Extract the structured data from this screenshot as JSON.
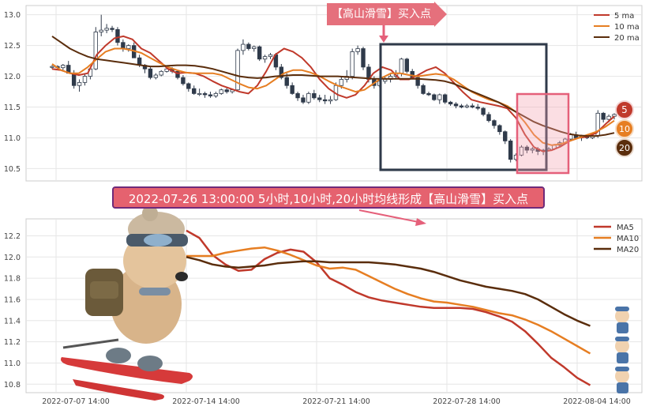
{
  "chart_data": [
    {
      "type": "candlestick",
      "title": "",
      "ylim": [
        10.3,
        13.15
      ],
      "y_ticks": [
        "10.5",
        "11.0",
        "11.5",
        "12.0",
        "12.5",
        "13.0"
      ],
      "legend_position": "top-right",
      "legend": [
        "5 ma",
        "10 ma",
        "20 ma"
      ],
      "candles": [
        [
          12.15,
          12.18,
          12.12,
          12.16
        ],
        [
          12.16,
          12.18,
          12.12,
          12.14
        ],
        [
          12.14,
          12.2,
          12.1,
          12.18
        ],
        [
          12.18,
          12.25,
          12.05,
          12.05
        ],
        [
          12.05,
          12.1,
          11.8,
          11.85
        ],
        [
          11.85,
          11.95,
          11.75,
          11.9
        ],
        [
          11.9,
          12.05,
          11.85,
          12.0
        ],
        [
          12.0,
          12.15,
          11.95,
          12.12
        ],
        [
          12.12,
          12.8,
          12.1,
          12.72
        ],
        [
          12.72,
          13.0,
          12.65,
          12.75
        ],
        [
          12.75,
          12.85,
          12.7,
          12.78
        ],
        [
          12.78,
          12.82,
          12.72,
          12.76
        ],
        [
          12.76,
          12.8,
          12.5,
          12.55
        ],
        [
          12.55,
          12.6,
          12.4,
          12.45
        ],
        [
          12.45,
          12.52,
          12.4,
          12.5
        ],
        [
          12.5,
          12.55,
          12.3,
          12.3
        ],
        [
          12.3,
          12.35,
          12.15,
          12.18
        ],
        [
          12.18,
          12.2,
          12.05,
          12.12
        ],
        [
          12.12,
          12.15,
          11.95,
          11.98
        ],
        [
          11.98,
          12.05,
          11.95,
          12.02
        ],
        [
          12.02,
          12.1,
          12.0,
          12.08
        ],
        [
          12.08,
          12.14,
          12.06,
          12.12
        ],
        [
          12.12,
          12.15,
          12.05,
          12.08
        ],
        [
          12.08,
          12.1,
          11.95,
          11.98
        ],
        [
          11.98,
          12.02,
          11.85,
          11.88
        ],
        [
          11.88,
          11.9,
          11.75,
          11.8
        ],
        [
          11.8,
          11.85,
          11.7,
          11.72
        ],
        [
          11.72,
          11.8,
          11.68,
          11.72
        ],
        [
          11.72,
          11.75,
          11.65,
          11.7
        ],
        [
          11.7,
          11.75,
          11.65,
          11.68
        ],
        [
          11.68,
          11.75,
          11.65,
          11.72
        ],
        [
          11.72,
          11.8,
          11.7,
          11.78
        ],
        [
          11.78,
          11.82,
          11.72,
          11.75
        ],
        [
          11.75,
          11.8,
          11.72,
          11.78
        ],
        [
          11.78,
          12.45,
          11.75,
          12.42
        ],
        [
          12.42,
          12.6,
          12.35,
          12.52
        ],
        [
          12.52,
          12.55,
          12.42,
          12.45
        ],
        [
          12.45,
          12.5,
          12.4,
          12.48
        ],
        [
          12.48,
          12.5,
          12.25,
          12.28
        ],
        [
          12.28,
          12.35,
          12.22,
          12.32
        ],
        [
          12.32,
          12.38,
          12.28,
          12.35
        ],
        [
          12.35,
          12.38,
          12.1,
          12.15
        ],
        [
          12.15,
          12.2,
          11.95,
          11.98
        ],
        [
          11.98,
          12.05,
          11.8,
          11.85
        ],
        [
          11.85,
          11.9,
          11.7,
          11.72
        ],
        [
          11.72,
          11.75,
          11.6,
          11.65
        ],
        [
          11.65,
          11.7,
          11.55,
          11.58
        ],
        [
          11.58,
          11.75,
          11.55,
          11.72
        ],
        [
          11.72,
          11.78,
          11.62,
          11.65
        ],
        [
          11.65,
          11.7,
          11.58,
          11.62
        ],
        [
          11.62,
          11.7,
          11.55,
          11.6
        ],
        [
          11.6,
          11.68,
          11.55,
          11.62
        ],
        [
          11.62,
          11.9,
          11.6,
          11.85
        ],
        [
          11.85,
          12.0,
          11.8,
          11.95
        ],
        [
          11.95,
          12.1,
          11.9,
          12.0
        ],
        [
          12.0,
          12.45,
          11.95,
          12.4
        ],
        [
          12.4,
          12.5,
          12.35,
          12.45
        ],
        [
          12.45,
          12.48,
          12.1,
          12.15
        ],
        [
          12.15,
          12.2,
          11.9,
          11.95
        ],
        [
          11.95,
          12.0,
          11.8,
          11.85
        ],
        [
          11.85,
          11.95,
          11.82,
          11.92
        ],
        [
          11.92,
          12.0,
          11.88,
          11.95
        ],
        [
          11.95,
          12.05,
          11.9,
          12.0
        ],
        [
          12.0,
          12.1,
          11.95,
          12.05
        ],
        [
          12.05,
          12.3,
          12.0,
          12.28
        ],
        [
          12.28,
          12.3,
          12.05,
          12.08
        ],
        [
          12.08,
          12.12,
          11.95,
          11.98
        ],
        [
          11.98,
          12.0,
          11.8,
          11.85
        ],
        [
          11.85,
          11.88,
          11.7,
          11.72
        ],
        [
          11.72,
          11.75,
          11.68,
          11.7
        ],
        [
          11.7,
          11.72,
          11.6,
          11.62
        ],
        [
          11.62,
          11.72,
          11.55,
          11.7
        ],
        [
          11.7,
          11.72,
          11.55,
          11.58
        ],
        [
          11.58,
          11.6,
          11.52,
          11.55
        ],
        [
          11.55,
          11.58,
          11.48,
          11.52
        ],
        [
          11.52,
          11.55,
          11.48,
          11.5
        ],
        [
          11.5,
          11.55,
          11.48,
          11.52
        ],
        [
          11.52,
          11.56,
          11.48,
          11.5
        ],
        [
          11.5,
          11.55,
          11.45,
          11.48
        ],
        [
          11.48,
          11.5,
          11.35,
          11.38
        ],
        [
          11.38,
          11.42,
          11.25,
          11.28
        ],
        [
          11.28,
          11.3,
          11.15,
          11.2
        ],
        [
          11.2,
          11.22,
          11.05,
          11.1
        ],
        [
          11.1,
          11.12,
          10.9,
          10.95
        ],
        [
          10.95,
          10.98,
          10.6,
          10.65
        ],
        [
          10.65,
          10.75,
          10.62,
          10.72
        ],
        [
          10.72,
          10.88,
          10.7,
          10.85
        ],
        [
          10.85,
          10.88,
          10.75,
          10.8
        ],
        [
          10.8,
          10.85,
          10.75,
          10.82
        ],
        [
          10.82,
          10.85,
          10.72,
          10.78
        ],
        [
          10.78,
          10.82,
          10.72,
          10.8
        ],
        [
          10.8,
          10.85,
          10.78,
          10.82
        ],
        [
          10.82,
          10.9,
          10.8,
          10.88
        ],
        [
          10.88,
          10.95,
          10.85,
          10.92
        ],
        [
          10.92,
          11.0,
          10.9,
          10.98
        ],
        [
          10.98,
          11.08,
          10.95,
          11.05
        ],
        [
          11.05,
          11.1,
          10.98,
          11.0
        ],
        [
          11.0,
          11.05,
          10.95,
          11.02
        ],
        [
          11.02,
          11.05,
          10.98,
          11.0
        ],
        [
          11.0,
          11.05,
          10.98,
          11.03
        ],
        [
          11.03,
          11.45,
          11.0,
          11.4
        ],
        [
          11.4,
          11.42,
          11.25,
          11.3
        ],
        [
          11.3,
          11.38,
          11.25,
          11.35
        ],
        [
          11.35,
          11.4,
          11.3,
          11.38
        ]
      ],
      "series": [
        {
          "name": "5 ma",
          "color": "#c0392b",
          "values": [
            12.12,
            12.1,
            12.05,
            12.02,
            12.05,
            12.35,
            12.5,
            12.62,
            12.65,
            12.6,
            12.45,
            12.38,
            12.25,
            12.12,
            12.05,
            12.06,
            12.05,
            12.0,
            11.92,
            11.85,
            11.8,
            11.75,
            11.72,
            11.85,
            12.08,
            12.35,
            12.45,
            12.4,
            12.3,
            12.15,
            11.95,
            11.8,
            11.7,
            11.65,
            11.7,
            11.85,
            12.05,
            12.15,
            12.1,
            11.95,
            11.95,
            12.02,
            12.1,
            12.15,
            12.05,
            11.9,
            11.75,
            11.62,
            11.58,
            11.55,
            11.52,
            11.48,
            11.32,
            11.05,
            10.85,
            10.78,
            10.8,
            10.86,
            10.95,
            11.0,
            11.02,
            11.08,
            11.22,
            11.35
          ]
        },
        {
          "name": "10 ma",
          "color": "#e67e22",
          "values": [
            12.2,
            12.1,
            12.05,
            12.05,
            12.15,
            12.28,
            12.4,
            12.45,
            12.45,
            12.42,
            12.38,
            12.3,
            12.22,
            12.15,
            12.1,
            12.06,
            12.05,
            12.05,
            12.05,
            12.02,
            11.95,
            11.88,
            11.82,
            11.8,
            11.85,
            11.95,
            12.05,
            12.1,
            12.1,
            12.06,
            12.0,
            11.92,
            11.85,
            11.8,
            11.75,
            11.78,
            11.88,
            11.98,
            12.05,
            12.05,
            12.02,
            12.0,
            12.02,
            12.04,
            12.02,
            11.95,
            11.85,
            11.75,
            11.68,
            11.62,
            11.58,
            11.52,
            11.42,
            11.25,
            11.05,
            10.92,
            10.88,
            10.9,
            10.95,
            11.0,
            11.05,
            11.1,
            11.18,
            11.28
          ]
        },
        {
          "name": "20 ma",
          "color": "#5a2d0c",
          "values": [
            12.65,
            12.55,
            12.45,
            12.38,
            12.32,
            12.28,
            12.26,
            12.24,
            12.22,
            12.2,
            12.18,
            12.16,
            12.16,
            12.17,
            12.18,
            12.18,
            12.17,
            12.15,
            12.12,
            12.08,
            12.04,
            12.0,
            11.98,
            11.97,
            11.98,
            12.0,
            12.01,
            12.02,
            12.02,
            12.01,
            12.0,
            12.0,
            12.0,
            11.99,
            11.98,
            11.97,
            11.96,
            11.96,
            11.96,
            11.96,
            11.96,
            11.96,
            11.95,
            11.94,
            11.92,
            11.88,
            11.82,
            11.76,
            11.7,
            11.64,
            11.58,
            11.5,
            11.42,
            11.34,
            11.26,
            11.2,
            11.15,
            11.1,
            11.06,
            11.04,
            11.03,
            11.03,
            11.05,
            11.08
          ]
        }
      ],
      "signal_label": "【高山滑雪】买入点",
      "ma_badges": [
        "5",
        "10",
        "20"
      ]
    },
    {
      "type": "line",
      "title": "",
      "ylim": [
        10.72,
        12.36
      ],
      "x_tick_labels": [
        "2022-07-07 14:00",
        "2022-07-14 14:00",
        "2022-07-21 14:00",
        "2022-07-28 14:00",
        "2022-08-04 14:00"
      ],
      "x_tick_positions": [
        0,
        5,
        10,
        15,
        20
      ],
      "y_ticks": [
        "10.8",
        "11.0",
        "11.2",
        "11.4",
        "11.6",
        "11.8",
        "12.0",
        "12.2"
      ],
      "legend_position": "top-right",
      "legend": [
        "MA5",
        "MA10",
        "MA20"
      ],
      "x": [
        5,
        5.5,
        6,
        6.5,
        7,
        7.5,
        8,
        8.5,
        9,
        9.5,
        10,
        10.5,
        11,
        11.5,
        12,
        12.5,
        13,
        13.5,
        14,
        14.5,
        15,
        15.5,
        16,
        16.5,
        17,
        17.5,
        18,
        18.5,
        19,
        19.5,
        20,
        20.5
      ],
      "series": [
        {
          "name": "MA5",
          "color": "#c0392b",
          "values": [
            12.25,
            12.18,
            12.02,
            11.93,
            11.87,
            11.88,
            11.98,
            12.04,
            12.07,
            12.05,
            11.95,
            11.8,
            11.74,
            11.67,
            11.62,
            11.59,
            11.57,
            11.55,
            11.53,
            11.52,
            11.52,
            11.52,
            11.51,
            11.48,
            11.44,
            11.39,
            11.3,
            11.18,
            11.05,
            10.96,
            10.86,
            10.79
          ]
        },
        {
          "name": "MA10",
          "color": "#e67e22",
          "values": [
            12.01,
            12.01,
            12.01,
            12.04,
            12.06,
            12.08,
            12.09,
            12.06,
            12.02,
            11.97,
            11.92,
            11.89,
            11.9,
            11.88,
            11.82,
            11.76,
            11.7,
            11.65,
            11.61,
            11.58,
            11.57,
            11.55,
            11.53,
            11.5,
            11.47,
            11.45,
            11.41,
            11.36,
            11.3,
            11.23,
            11.16,
            11.09
          ]
        },
        {
          "name": "MA20",
          "color": "#5a2d0c",
          "values": [
            12.0,
            11.97,
            11.93,
            11.91,
            11.9,
            11.91,
            11.92,
            11.94,
            11.95,
            11.96,
            11.96,
            11.95,
            11.95,
            11.95,
            11.95,
            11.94,
            11.93,
            11.91,
            11.89,
            11.86,
            11.82,
            11.78,
            11.75,
            11.72,
            11.7,
            11.68,
            11.65,
            11.6,
            11.53,
            11.46,
            11.4,
            11.35
          ]
        }
      ]
    }
  ],
  "caption": "2022-07-26 13:00:00 5小时,10小时,20小时均线形成【高山滑雪】买入点"
}
